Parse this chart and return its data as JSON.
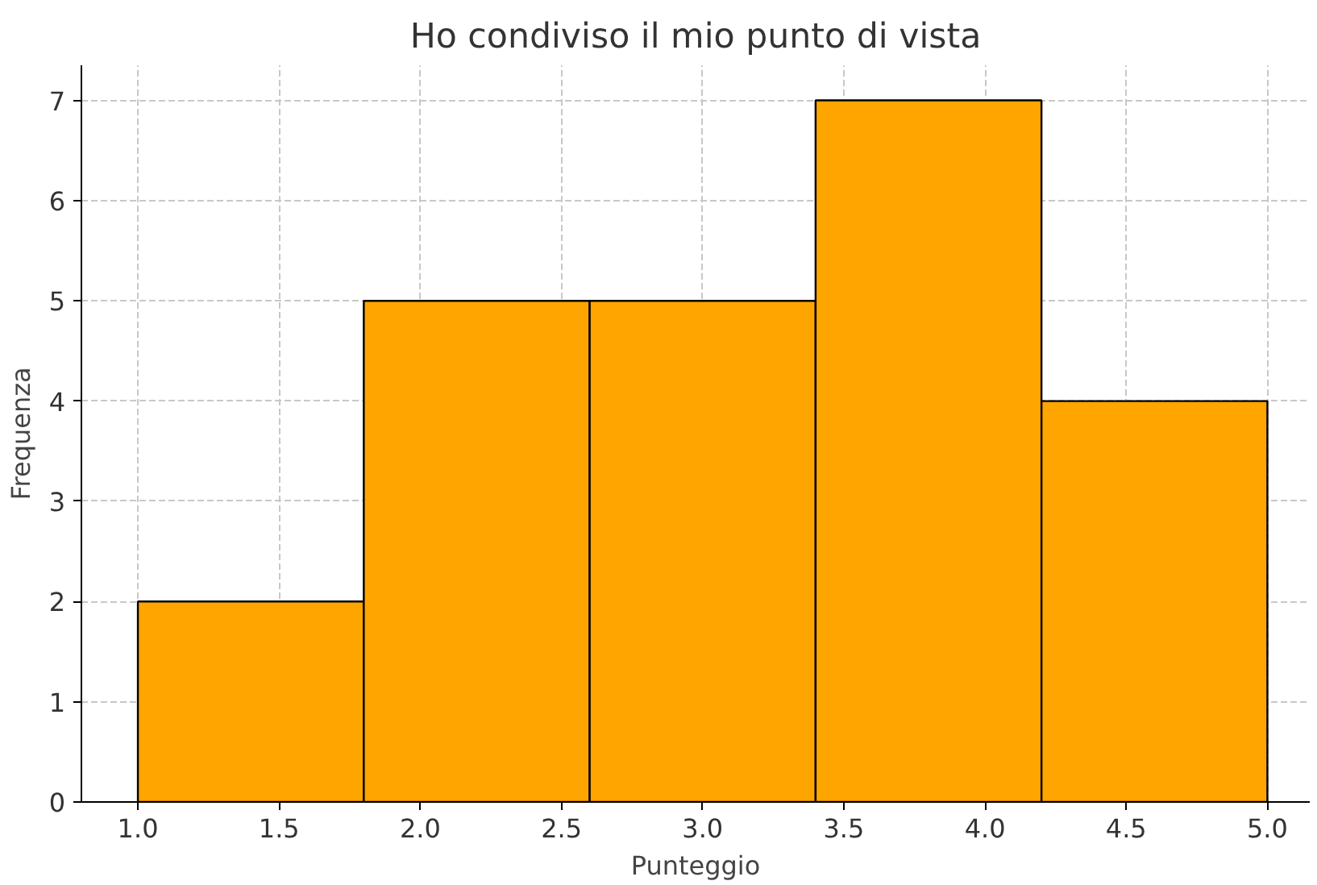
{
  "chart_data": {
    "type": "histogram",
    "title": "Ho condiviso il mio punto di vista",
    "xlabel": "Punteggio",
    "ylabel": "Frequenza",
    "bins": [
      1.0,
      1.8,
      2.6,
      3.4,
      4.2,
      5.0
    ],
    "values": [
      2,
      5,
      5,
      7,
      4
    ],
    "color": "#ffa500",
    "xlim": [
      0.8,
      5.15
    ],
    "ylim": [
      0,
      7.35
    ],
    "xticks": [
      {
        "value": 1.0,
        "label": "1.0"
      },
      1.5,
      {
        "value": 2.0,
        "label": "2.0"
      },
      2.5,
      {
        "value": 3.0,
        "label": "3.0"
      },
      3.5,
      {
        "value": 4.0,
        "label": "4.0"
      },
      4.5,
      {
        "value": 5.0,
        "label": "5.0"
      }
    ],
    "yticks": [
      0,
      1,
      2,
      3,
      4,
      5,
      6,
      7
    ],
    "grid": true
  }
}
